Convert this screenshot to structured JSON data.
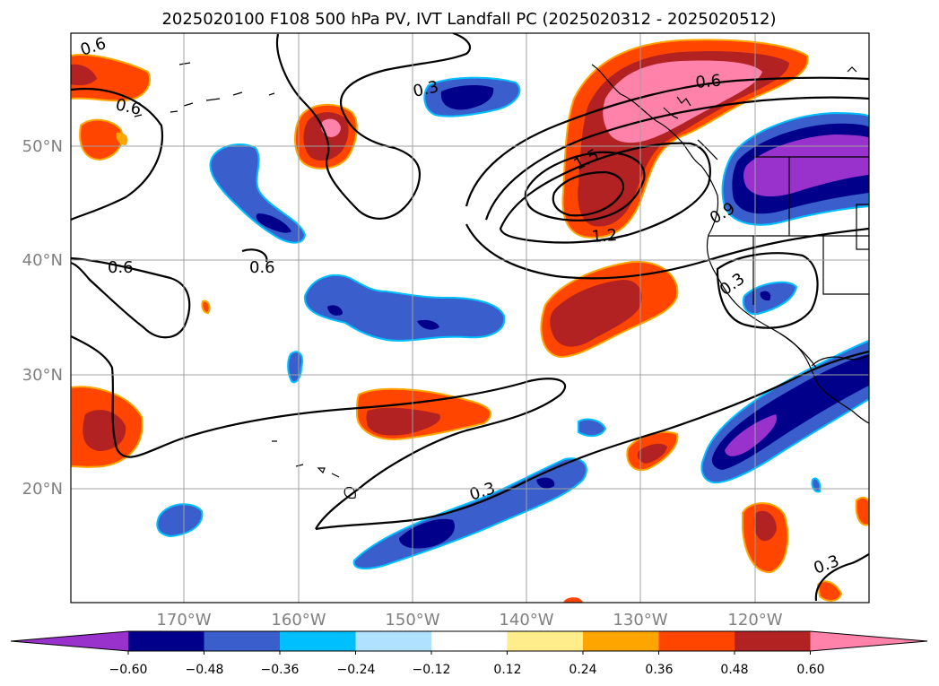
{
  "title": "2025020100 F108 500 hPa PV, IVT Landfall PC (2025020312 - 2025020512)",
  "axes": {
    "x_ticks": [
      "170°W",
      "160°W",
      "150°W",
      "140°W",
      "130°W",
      "120°W"
    ],
    "y_ticks": [
      "50°N",
      "40°N",
      "30°N",
      "20°N"
    ],
    "tick_color": "#808080",
    "grid": true
  },
  "contour_labels": [
    "0.6",
    "0.6",
    "0.3",
    "0.6",
    "1.5",
    "0.9",
    "1.2",
    "0.6",
    "0.6",
    "0.3",
    "0.3",
    "0.3"
  ],
  "colorbar": {
    "tick_labels": [
      "−0.60",
      "−0.48",
      "−0.36",
      "−0.24",
      "−0.12",
      "0.12",
      "0.24",
      "0.36",
      "0.48",
      "0.60"
    ],
    "bins": [
      {
        "range": "< -0.60",
        "color": "#9932cc"
      },
      {
        "range": "-0.60 to -0.48",
        "color": "#00008b"
      },
      {
        "range": "-0.48 to -0.36",
        "color": "#3a5fcd"
      },
      {
        "range": "-0.36 to -0.24",
        "color": "#00bfff"
      },
      {
        "range": "-0.24 to -0.12",
        "color": "#b0e2ff"
      },
      {
        "range": "-0.12 to 0.12",
        "color": "#ffffff"
      },
      {
        "range": "0.12 to 0.24",
        "color": "#ffec8b"
      },
      {
        "range": "0.24 to 0.36",
        "color": "#ffa500"
      },
      {
        "range": "0.36 to 0.48",
        "color": "#ff4500"
      },
      {
        "range": "0.48 to 0.60",
        "color": "#b22222"
      },
      {
        "range": "> 0.60",
        "color": "#ff82ab"
      }
    ]
  }
}
